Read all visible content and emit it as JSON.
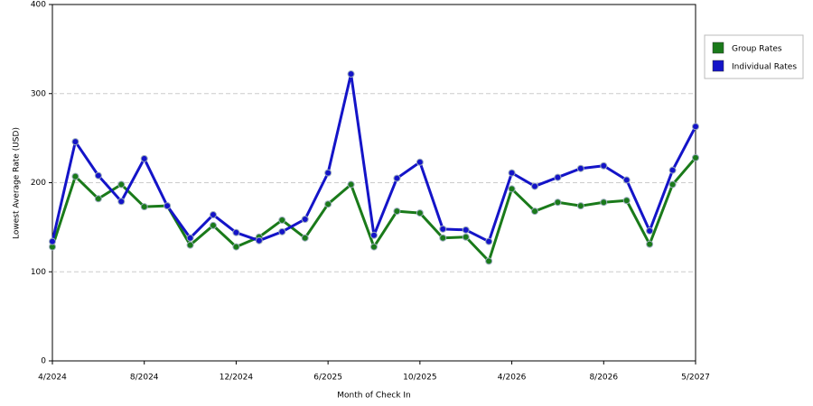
{
  "chart_data": {
    "type": "line",
    "x_label": "Month of Check In",
    "y_label": "Lowest Average Rate (USD)",
    "categories": [
      "4/2024",
      null,
      null,
      null,
      "8/2024",
      null,
      null,
      null,
      "12/2024",
      null,
      null,
      null,
      "6/2025",
      null,
      null,
      null,
      "10/2025",
      null,
      null,
      null,
      "4/2026",
      null,
      null,
      null,
      "8/2026",
      null,
      null,
      null,
      "5/2027"
    ],
    "series": [
      {
        "name": "Group Rates",
        "color": "#1a7a1a",
        "values": [
          128,
          207,
          182,
          198,
          173,
          174,
          130,
          152,
          128,
          139,
          158,
          138,
          176,
          198,
          128,
          168,
          166,
          138,
          139,
          112,
          193,
          168,
          178,
          174,
          178,
          180,
          131,
          198,
          228
        ]
      },
      {
        "name": "Individual Rates",
        "color": "#1414c8",
        "values": [
          134,
          246,
          208,
          179,
          227,
          174,
          138,
          164,
          144,
          135,
          145,
          159,
          211,
          322,
          141,
          205,
          223,
          148,
          147,
          134,
          211,
          196,
          206,
          216,
          219,
          203,
          146,
          214,
          263
        ]
      }
    ],
    "ylim": [
      0,
      400
    ],
    "yticks": [
      0,
      100,
      200,
      300,
      400
    ],
    "grid": true,
    "legend": "right"
  }
}
